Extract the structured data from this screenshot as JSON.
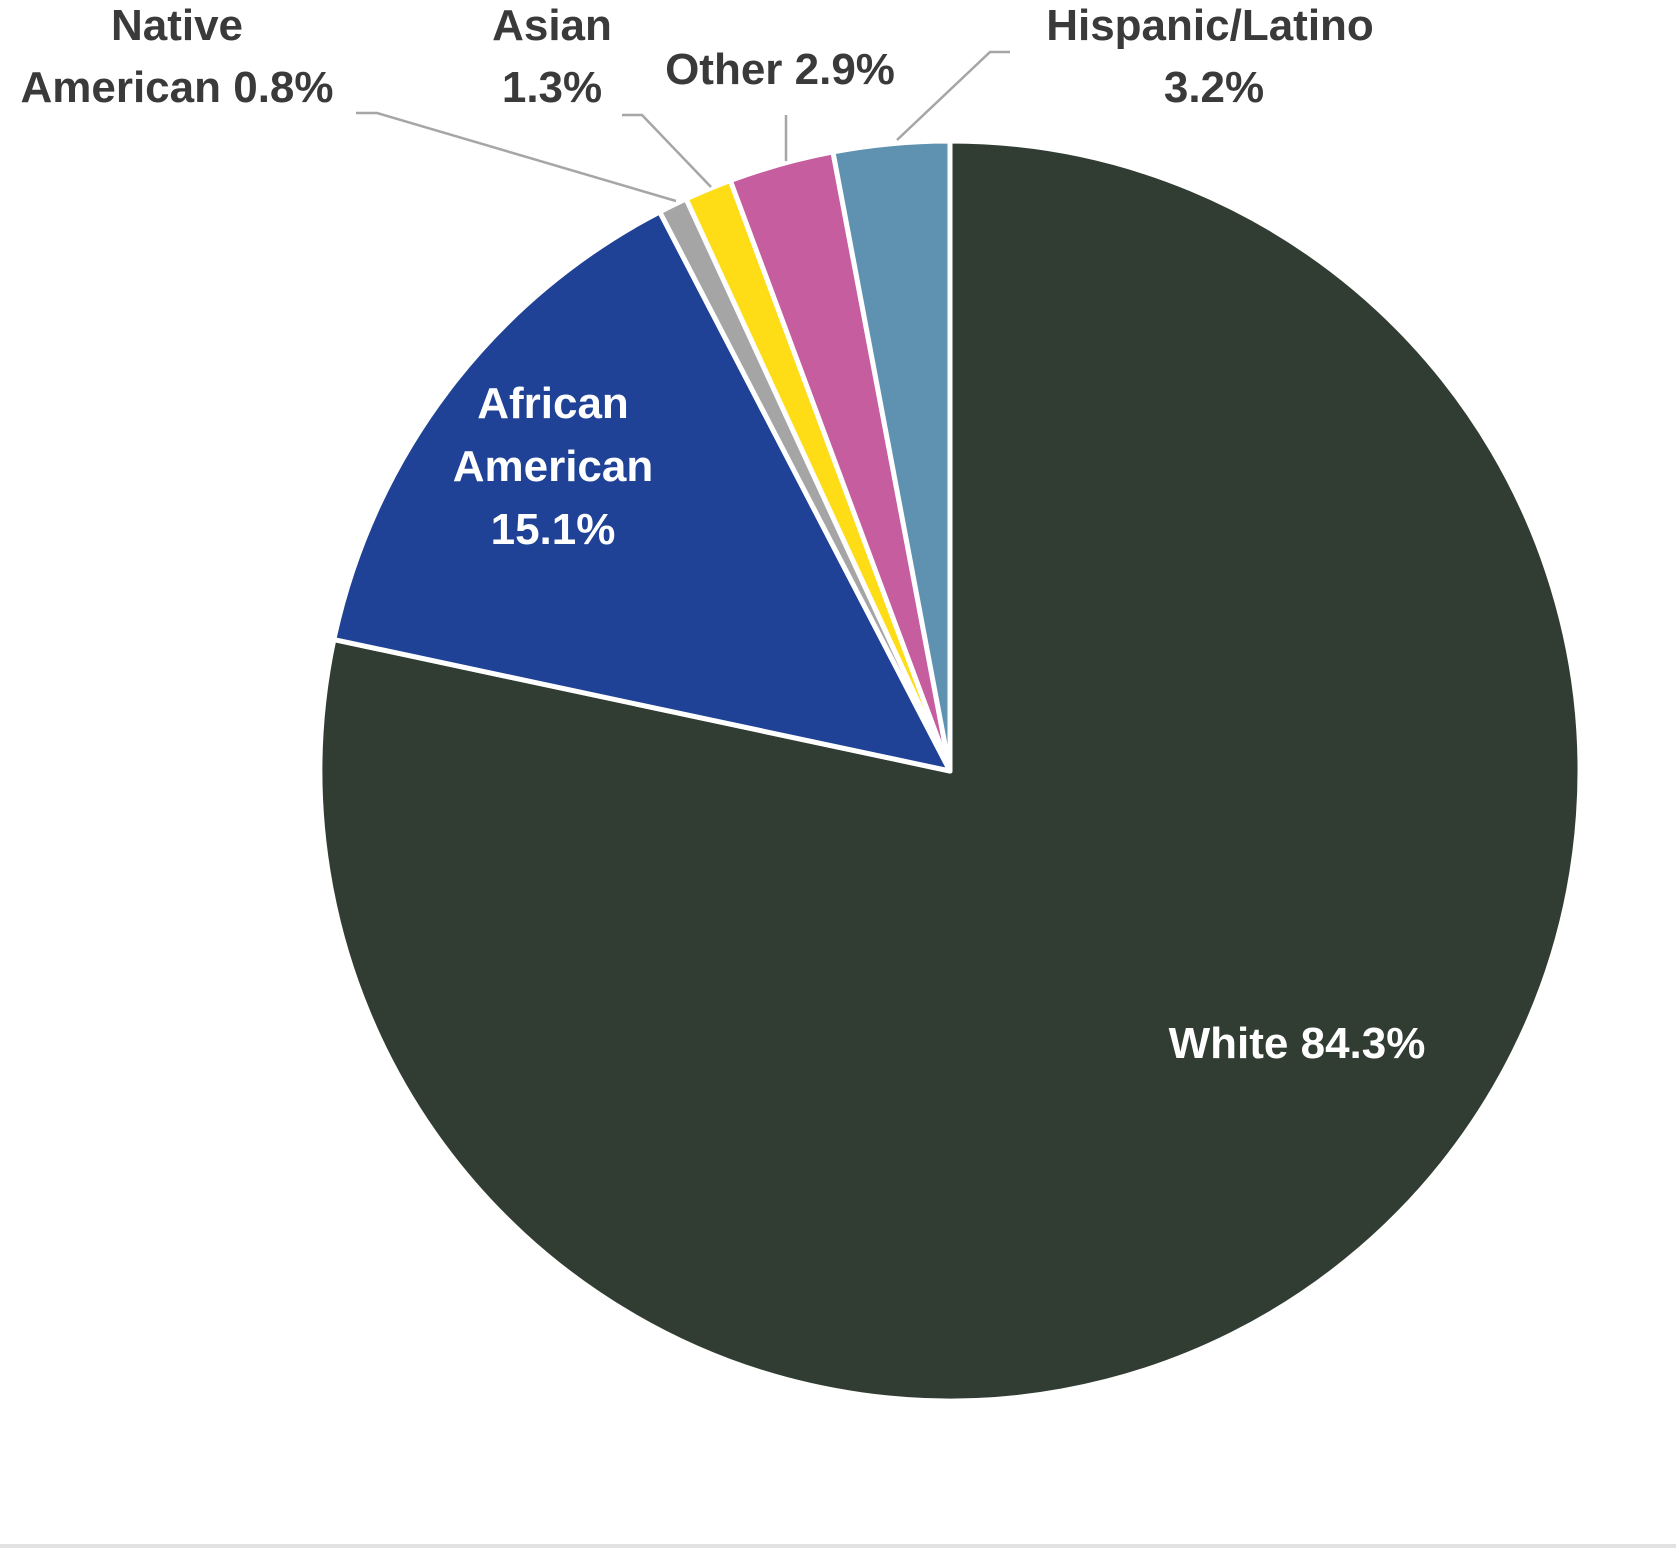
{
  "chart_data": {
    "type": "pie",
    "title": "",
    "start_angle_deg": 0,
    "direction": "clockwise",
    "slices": [
      {
        "name": "White",
        "value": 84.3,
        "label_lines": [
          "White 84.3%"
        ],
        "color": "#313d33",
        "label_color": "#ffffff",
        "label_placement": "inside"
      },
      {
        "name": "African American",
        "value": 15.1,
        "label_lines": [
          "African",
          "American",
          "15.1%"
        ],
        "color": "#1f4296",
        "label_color": "#ffffff",
        "label_placement": "inside"
      },
      {
        "name": "Native American",
        "value": 0.8,
        "label_lines": [
          "Native",
          "American 0.8%"
        ],
        "color": "#a5a5a5",
        "label_color": "#3a3a3a",
        "label_placement": "outside"
      },
      {
        "name": "Asian",
        "value": 1.3,
        "label_lines": [
          "Asian",
          "1.3%"
        ],
        "color": "#fedc16",
        "label_color": "#3a3a3a",
        "label_placement": "outside"
      },
      {
        "name": "Other",
        "value": 2.9,
        "label_lines": [
          "Other 2.9%"
        ],
        "color": "#c55d9e",
        "label_color": "#3a3a3a",
        "label_placement": "outside"
      },
      {
        "name": "Hispanic/Latino",
        "value": 3.2,
        "label_lines": [
          "Hispanic/Latino",
          "3.2%"
        ],
        "color": "#5f91b1",
        "label_color": "#3a3a3a",
        "label_placement": "outside"
      }
    ],
    "legend": "none"
  },
  "colors": {
    "background": "#ffffff",
    "leader_line": "#a6a6a6"
  }
}
